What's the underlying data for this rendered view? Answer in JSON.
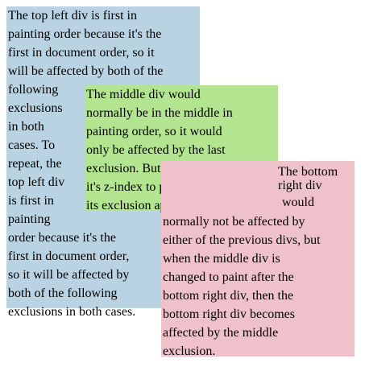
{
  "boxes": {
    "top_left": {
      "color": "#b9d3e3",
      "lines": [
        "The top left div is first in",
        "painting order because it's the",
        "first in document order, so it",
        "will be affected by both of the",
        "following",
        "exclusions",
        "in both",
        "cases. To",
        "repeat, the",
        "top left div",
        "is first in",
        "painting",
        "order because it's the",
        "first in document order,",
        "so it will be affected by",
        "both of the following",
        "exclusions in both cases."
      ]
    },
    "middle": {
      "color": "#b3e590",
      "lines": [
        "The middle div would",
        "normally be in the middle in",
        "painting order, so it would",
        "only be affected by the last",
        "exclusion. But if we change",
        "it's z-index to paint last, then",
        "its exclusion applies first."
      ]
    },
    "bottom_right": {
      "color": "#efc2cb",
      "lines": [
        "The bottom",
        "right div",
        "would",
        "normally not be affected by",
        "either of the previous divs, but",
        "when the middle div is",
        "changed to paint after the",
        "bottom right div, then the",
        "bottom right div becomes",
        "affected by the middle",
        "exclusion."
      ]
    }
  }
}
